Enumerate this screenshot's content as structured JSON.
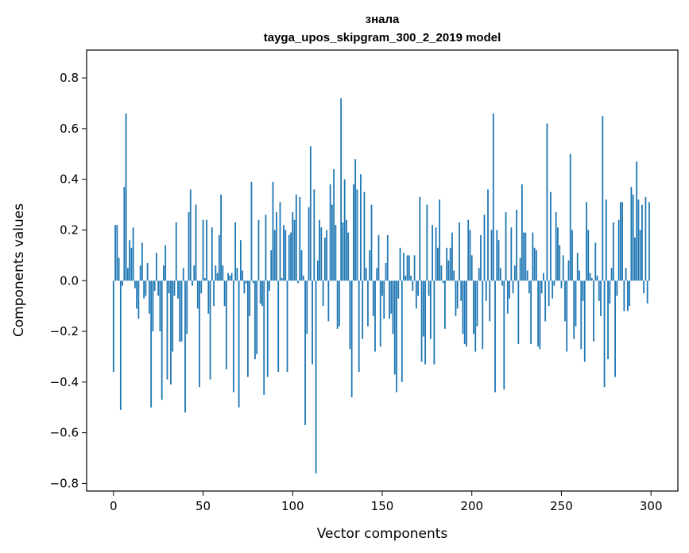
{
  "chart_data": {
    "type": "bar",
    "title": "знала",
    "subtitle": "tayga_upos_skipgram_300_2_2019 model",
    "xlabel": "Vector components",
    "ylabel": "Components values",
    "xlim": [
      -15,
      315
    ],
    "ylim": [
      -0.83,
      0.91
    ],
    "xticks": [
      0,
      50,
      100,
      150,
      200,
      250,
      300
    ],
    "yticks": [
      -0.8,
      -0.6,
      -0.4,
      -0.2,
      0.0,
      0.2,
      0.4,
      0.6,
      0.8
    ],
    "xtick_labels": [
      "0",
      "50",
      "100",
      "150",
      "200",
      "250",
      "300"
    ],
    "ytick_labels": [
      "−0.8",
      "−0.6",
      "−0.4",
      "−0.2",
      "0.0",
      "0.2",
      "0.4",
      "0.6",
      "0.8"
    ],
    "grid": false,
    "legend": "none",
    "bar_color": "#1f77b4",
    "values": [
      -0.36,
      0.22,
      0.22,
      0.09,
      -0.51,
      -0.02,
      0.37,
      0.66,
      0.05,
      0.16,
      0.13,
      0.21,
      -0.03,
      -0.11,
      -0.15,
      0.06,
      0.15,
      -0.07,
      -0.06,
      0.07,
      -0.13,
      -0.5,
      -0.2,
      -0.04,
      0.11,
      -0.06,
      -0.2,
      -0.47,
      0.06,
      0.14,
      -0.39,
      -0.05,
      -0.41,
      -0.28,
      -0.06,
      0.23,
      -0.07,
      -0.24,
      -0.24,
      0.05,
      -0.52,
      -0.21,
      0.27,
      0.36,
      -0.02,
      0.06,
      0.3,
      -0.11,
      -0.42,
      -0.05,
      0.24,
      0.01,
      0.24,
      -0.13,
      -0.39,
      0.21,
      -0.1,
      0.06,
      0.03,
      0.18,
      0.34,
      0.06,
      -0.1,
      -0.35,
      0.03,
      0.02,
      0.03,
      -0.44,
      0.23,
      0.05,
      -0.5,
      0.16,
      0.04,
      -0.05,
      -0.01,
      -0.38,
      -0.14,
      0.39,
      -0.01,
      -0.31,
      -0.29,
      0.24,
      -0.09,
      -0.1,
      -0.45,
      0.26,
      -0.38,
      -0.04,
      0.12,
      0.39,
      0.2,
      0.27,
      -0.36,
      0.31,
      0.01,
      0.22,
      0.2,
      -0.36,
      0.18,
      0.19,
      0.27,
      0.24,
      0.34,
      -0.01,
      0.33,
      0.12,
      0.02,
      -0.57,
      -0.21,
      0.29,
      0.53,
      -0.33,
      0.36,
      -0.76,
      0.08,
      0.24,
      0.21,
      -0.1,
      0.17,
      0.2,
      -0.16,
      0.38,
      0.3,
      0.44,
      0.22,
      -0.19,
      -0.18,
      0.72,
      0.23,
      0.4,
      0.24,
      0.19,
      -0.27,
      -0.46,
      0.38,
      0.48,
      0.36,
      -0.36,
      0.42,
      -0.23,
      0.35,
      0.05,
      -0.18,
      0.12,
      0.3,
      -0.14,
      -0.28,
      0.05,
      0.18,
      -0.26,
      -0.06,
      -0.15,
      0.07,
      0.18,
      -0.15,
      -0.13,
      -0.21,
      -0.37,
      -0.44,
      -0.07,
      0.13,
      -0.4,
      0.11,
      0.02,
      0.1,
      0.1,
      0.02,
      -0.04,
      0.1,
      -0.11,
      -0.06,
      0.33,
      -0.32,
      -0.22,
      -0.33,
      0.3,
      -0.06,
      -0.23,
      0.22,
      -0.33,
      0.21,
      0.13,
      0.32,
      0.06,
      -0.01,
      -0.19,
      0.13,
      0.08,
      0.13,
      0.19,
      0.04,
      -0.14,
      -0.11,
      0.23,
      -0.08,
      -0.21,
      -0.25,
      -0.26,
      0.24,
      0.2,
      0.1,
      -0.21,
      -0.28,
      -0.18,
      0.05,
      0.18,
      -0.27,
      0.26,
      -0.08,
      0.36,
      -0.16,
      0.2,
      0.66,
      -0.44,
      0.2,
      0.16,
      0.05,
      -0.02,
      -0.43,
      0.27,
      -0.13,
      -0.07,
      0.21,
      -0.05,
      0.06,
      0.28,
      -0.25,
      0.09,
      0.38,
      0.19,
      0.19,
      0.04,
      -0.05,
      -0.25,
      0.19,
      0.13,
      0.12,
      -0.26,
      -0.27,
      -0.05,
      0.03,
      -0.16,
      0.62,
      -0.1,
      0.35,
      -0.07,
      -0.02,
      0.27,
      0.21,
      0.14,
      -0.03,
      0.1,
      -0.16,
      -0.28,
      0.08,
      0.5,
      0.2,
      -0.23,
      -0.18,
      0.11,
      0.04,
      -0.27,
      -0.08,
      -0.32,
      0.31,
      0.2,
      0.03,
      0.01,
      -0.24,
      0.15,
      0.02,
      -0.08,
      -0.14,
      0.65,
      -0.42,
      0.32,
      -0.31,
      -0.09,
      0.05,
      0.23,
      -0.38,
      -0.06,
      0.24,
      0.31,
      0.31,
      -0.12,
      0.05,
      -0.12,
      -0.1,
      0.37,
      0.34,
      0.17,
      0.47,
      0.32,
      0.2,
      0.3,
      -0.05,
      0.33,
      -0.09,
      0.31
    ]
  }
}
